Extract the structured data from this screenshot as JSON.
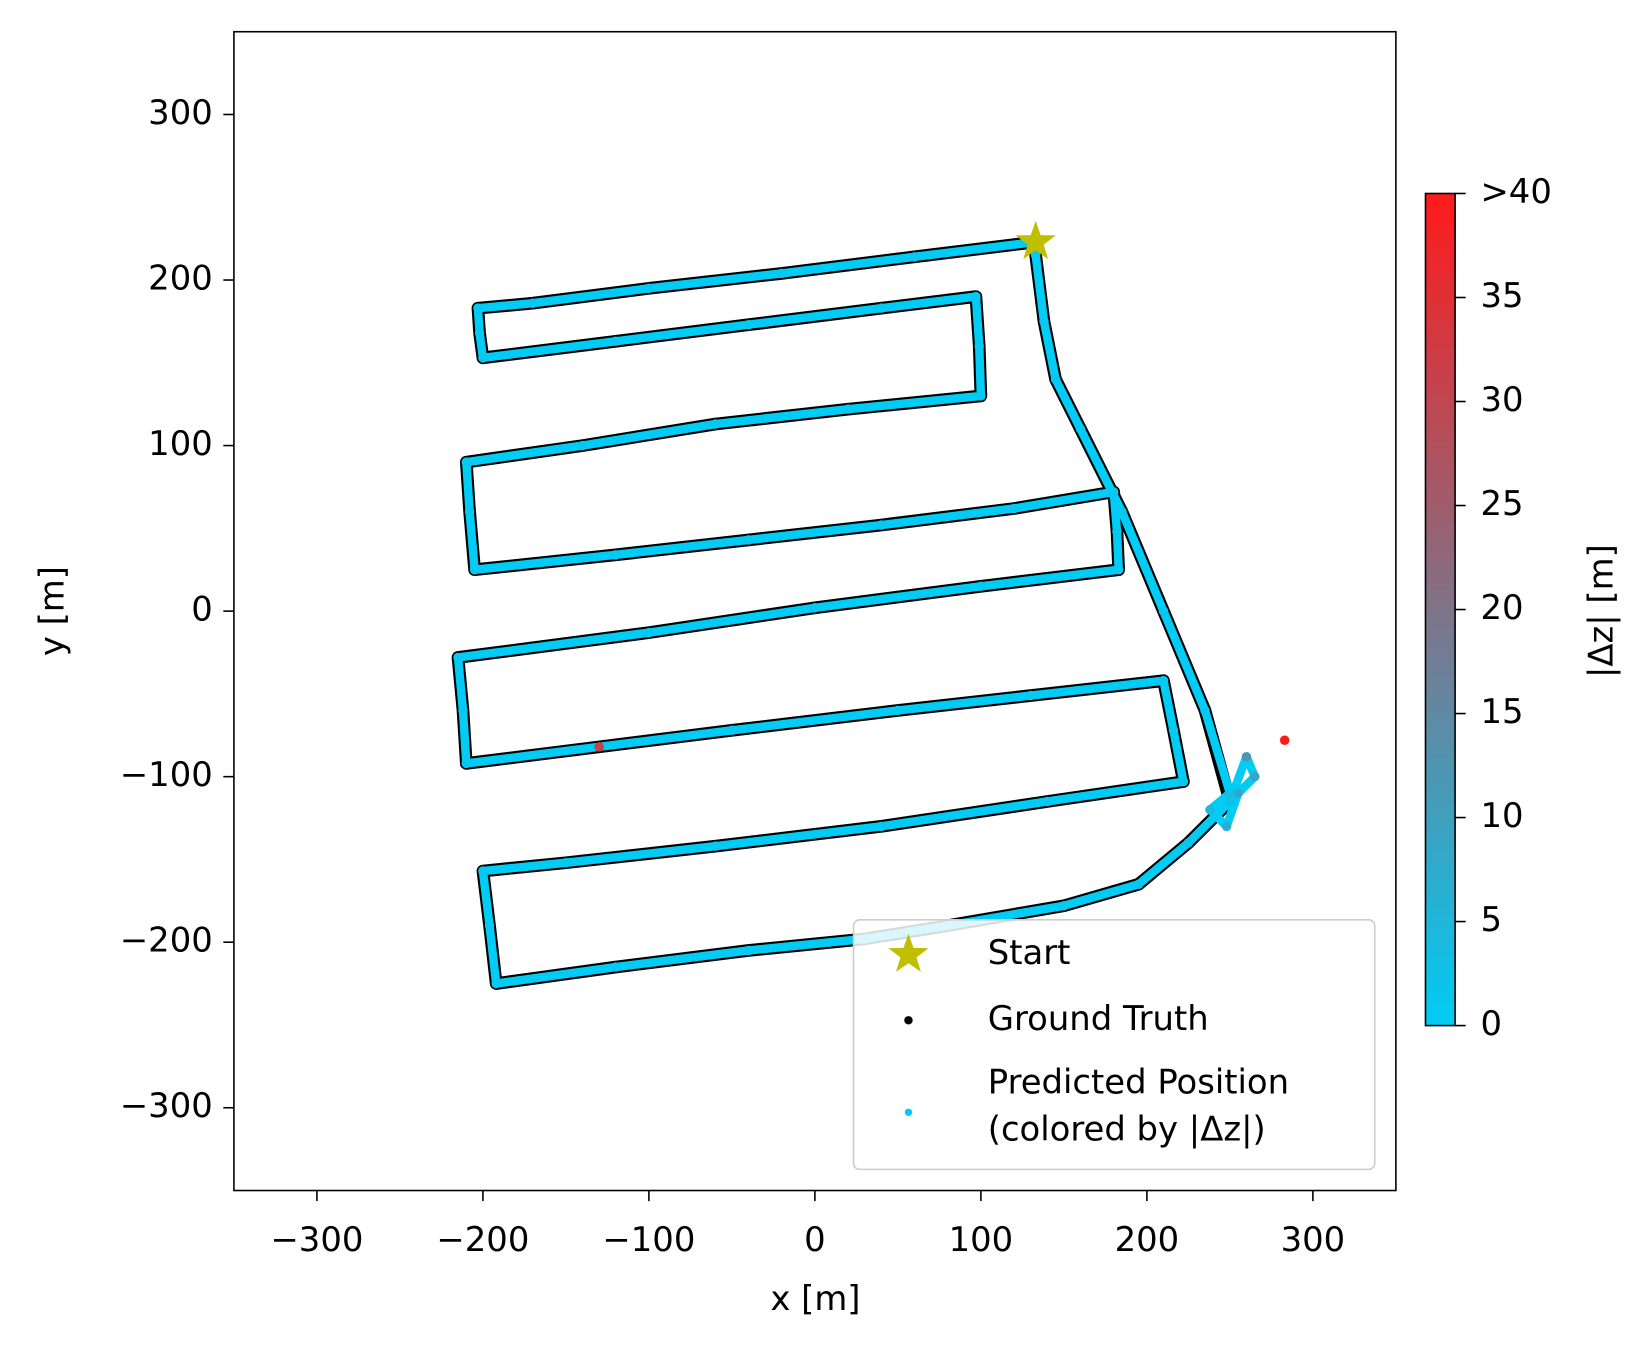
{
  "chart_data": {
    "type": "scatter",
    "xlabel": "x [m]",
    "ylabel": "y [m]",
    "xlim": [
      -350,
      350
    ],
    "ylim": [
      -350,
      350
    ],
    "xticks": [
      {
        "value": -300,
        "label": "−300"
      },
      {
        "value": -200,
        "label": "−200"
      },
      {
        "value": -100,
        "label": "−100"
      },
      0,
      100,
      200,
      300
    ],
    "yticks": [
      {
        "value": -300,
        "label": "−300"
      },
      {
        "value": -200,
        "label": "−200"
      },
      {
        "value": -100,
        "label": "−100"
      },
      0,
      100,
      200,
      300
    ],
    "legend": "lower right",
    "start": {
      "name": "Start",
      "x": 133,
      "y": 223,
      "color": "#bfbf00"
    },
    "series": [
      {
        "name": "Ground Truth",
        "color": "#000000",
        "x": [
          133,
          60,
          -20,
          -100,
          -170,
          -203,
          -202,
          -200,
          -120,
          -40,
          40,
          97,
          99,
          100,
          20,
          -60,
          -140,
          -210,
          -208,
          -205,
          -120,
          -40,
          40,
          120,
          180,
          182,
          183,
          100,
          0,
          -100,
          -215,
          -212,
          -210,
          -130,
          -50,
          50,
          130,
          210,
          216,
          222,
          140,
          40,
          -60,
          -150,
          -200,
          -196,
          -192,
          -120,
          -40,
          30,
          80,
          150,
          195,
          225,
          250,
          235,
          210,
          185,
          160,
          145,
          138,
          133
        ],
        "y": [
          223,
          214,
          204,
          195,
          186,
          183,
          168,
          153,
          163,
          173,
          183,
          190,
          160,
          130,
          122,
          113,
          100,
          90,
          60,
          25,
          34,
          43,
          52,
          62,
          72,
          48,
          25,
          15,
          2,
          -13,
          -28,
          -60,
          -92,
          -82,
          -72,
          -60,
          -51,
          -42,
          -72,
          -103,
          -115,
          -130,
          -142,
          -152,
          -157,
          -190,
          -225,
          -215,
          -205,
          -198,
          -190,
          -178,
          -165,
          -140,
          -115,
          -60,
          0,
          60,
          110,
          140,
          175,
          215
        ]
      },
      {
        "name": "Predicted Position\n(colored by |Δz|)",
        "colormap": [
          "#00ccf5",
          "#ff1a1a"
        ],
        "x": [
          133,
          60,
          -20,
          -100,
          -170,
          -203,
          -202,
          -200,
          -120,
          -40,
          40,
          97,
          99,
          100,
          20,
          -60,
          -140,
          -210,
          -208,
          -205,
          -120,
          -40,
          40,
          120,
          180,
          182,
          183,
          100,
          0,
          -100,
          -215,
          -212,
          -210,
          -130,
          -50,
          50,
          130,
          210,
          216,
          222,
          140,
          40,
          -60,
          -150,
          -200,
          -196,
          -192,
          -120,
          -40,
          30,
          80,
          150,
          195,
          225,
          250,
          260,
          265,
          255,
          248,
          238,
          250,
          235,
          210,
          185,
          160,
          145,
          138,
          133,
          null,
          283
        ],
        "y": [
          223,
          214,
          204,
          195,
          186,
          183,
          168,
          153,
          163,
          173,
          183,
          190,
          160,
          130,
          122,
          113,
          100,
          90,
          60,
          25,
          34,
          43,
          52,
          62,
          72,
          48,
          25,
          15,
          2,
          -13,
          -28,
          -60,
          -92,
          -82,
          -72,
          -60,
          -51,
          -42,
          -72,
          -103,
          -115,
          -130,
          -142,
          -152,
          -157,
          -190,
          -225,
          -215,
          -205,
          -198,
          -190,
          -178,
          -165,
          -140,
          -115,
          -88,
          -100,
          -110,
          -130,
          -120,
          -110,
          -60,
          0,
          60,
          110,
          140,
          175,
          215,
          null,
          -78
        ],
        "dz": [
          1,
          1,
          1,
          1,
          1,
          1,
          1,
          1,
          1,
          1,
          1,
          1,
          1,
          1,
          1,
          1,
          1,
          1,
          1,
          1,
          1,
          1,
          1,
          1,
          1,
          1,
          1,
          1,
          1,
          1,
          1,
          1,
          1,
          32,
          1,
          1,
          1,
          1,
          1,
          1,
          1,
          1,
          1,
          1,
          1,
          1,
          1,
          1,
          1,
          1,
          1,
          1,
          1,
          2,
          3,
          12,
          9,
          8,
          6,
          4,
          3,
          1,
          1,
          1,
          1,
          1,
          1,
          1,
          null,
          42
        ]
      }
    ],
    "colorbar": {
      "label": "|Δz| [m]",
      "lim": [
        0,
        40
      ],
      "ticks": [
        0,
        5,
        10,
        15,
        20,
        25,
        30,
        35,
        {
          "value": 40,
          "label": ">40"
        }
      ]
    }
  }
}
